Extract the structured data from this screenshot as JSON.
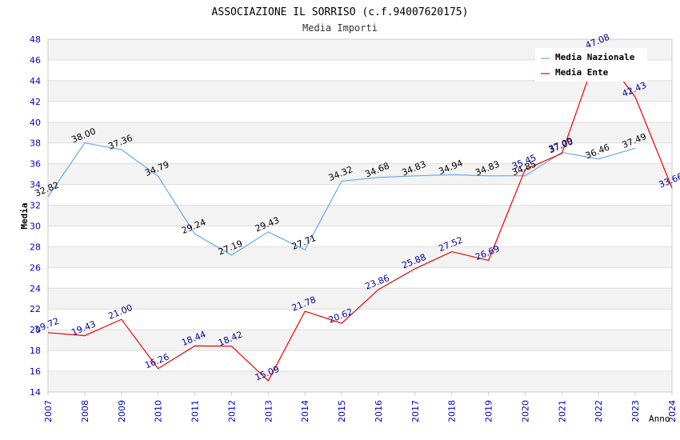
{
  "chart_data": {
    "type": "line",
    "title": "ASSOCIAZIONE IL SORRISO (c.f.94007620175)",
    "subtitle": "Media Importi",
    "xlabel": "Anno",
    "ylabel": "Media",
    "ylim": [
      14,
      48
    ],
    "yticks": [
      "14",
      "16",
      "18",
      "20",
      "22",
      "24",
      "26",
      "28",
      "30",
      "32",
      "34",
      "36",
      "38",
      "40",
      "42",
      "44",
      "46",
      "48"
    ],
    "xlim": [
      2007,
      2024
    ],
    "xticks": [
      "2007",
      "2008",
      "2009",
      "2010",
      "2011",
      "2012",
      "2013",
      "2014",
      "2015",
      "2016",
      "2017",
      "2018",
      "2019",
      "2020",
      "2021",
      "2022",
      "2023",
      "2024"
    ],
    "legend_position": "top-right",
    "series": [
      {
        "name": "Media Nazionale",
        "color": "#66aaee",
        "label_color": "#000000",
        "x": [
          2007,
          2008,
          2009,
          2010,
          2011,
          2012,
          2013,
          2014,
          2015,
          2016,
          2017,
          2018,
          2019,
          2020,
          2021,
          2022,
          2023
        ],
        "values": [
          32.82,
          38.0,
          37.36,
          34.79,
          29.24,
          27.19,
          29.43,
          27.71,
          34.32,
          34.68,
          34.83,
          34.94,
          34.83,
          34.85,
          37.09,
          36.46,
          37.49
        ],
        "labels": [
          "32.82",
          "38.00",
          "37.36",
          "34.79",
          "29.24",
          "27.19",
          "29.43",
          "27.71",
          "34.32",
          "34.68",
          "34.83",
          "34.94",
          "34.83",
          "34.85",
          "37.09",
          "36.46",
          "37.49"
        ]
      },
      {
        "name": "Media Ente",
        "color": "#ee0000",
        "label_color": "#000099",
        "x": [
          2007,
          2008,
          2009,
          2010,
          2011,
          2012,
          2013,
          2014,
          2015,
          2016,
          2017,
          2018,
          2019,
          2020,
          2021,
          2022,
          2023,
          2024
        ],
        "values": [
          19.72,
          19.43,
          21.0,
          16.26,
          18.44,
          18.42,
          15.09,
          21.78,
          20.62,
          23.86,
          25.88,
          27.52,
          26.69,
          35.45,
          37.0,
          47.08,
          42.43,
          33.66
        ],
        "labels": [
          "19.72",
          "19.43",
          "21.00",
          "16.26",
          "18.44",
          "18.42",
          "15.09",
          "21.78",
          "20.62",
          "23.86",
          "25.88",
          "27.52",
          "26.69",
          "35.45",
          "37.00",
          "47.08",
          "42.43",
          "33.66"
        ]
      }
    ]
  }
}
